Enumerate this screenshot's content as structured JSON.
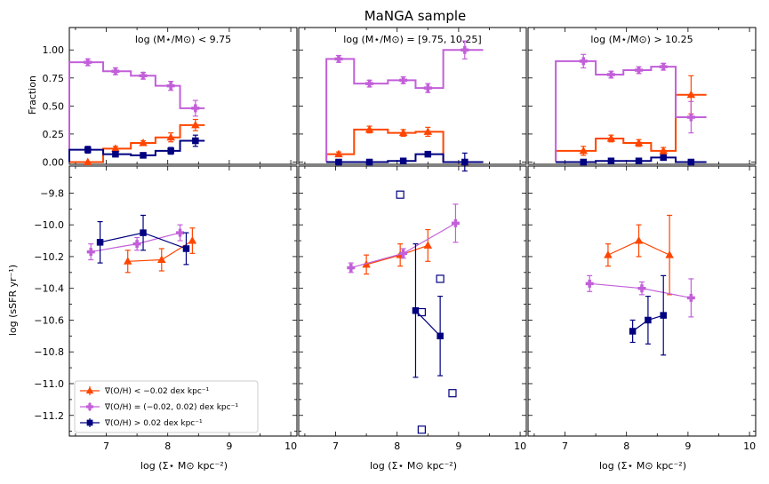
{
  "chart_data": {
    "type": "line",
    "title": "MaNGA sample",
    "x_axis": {
      "label": "log (Σ⋆ M⊙ kpc⁻²)",
      "range": [
        6.4,
        10.1
      ],
      "ticks": [
        7,
        8,
        9,
        10
      ]
    },
    "fraction_axis": {
      "label": "Fraction",
      "range": [
        -0.02,
        1.2
      ],
      "ticks": [
        0.0,
        0.25,
        0.5,
        0.75,
        1.0
      ],
      "tick_labels": [
        "0.00",
        "0.25",
        "0.50",
        "0.75",
        "1.00"
      ]
    },
    "ssfr_axis": {
      "label": "log (sSFR yr⁻¹)",
      "range": [
        -11.33,
        -9.63
      ],
      "ticks": [
        -9.8,
        -10.0,
        -10.2,
        -10.4,
        -10.6,
        -10.8,
        -11.0,
        -11.2
      ],
      "tick_labels": [
        "−9.8",
        "−10.0",
        "−10.2",
        "−10.4",
        "−10.6",
        "−10.8",
        "−11.0",
        "−11.2"
      ]
    },
    "series_styles": [
      {
        "key": "neg",
        "name": "∇(O/H) < −0.02 dex kpc⁻¹",
        "color": "#ff4500",
        "marker": "triangle"
      },
      {
        "key": "flat",
        "name": "∇(O/H) = (−0.02, 0.02) dex kpc⁻¹",
        "color": "#c25fd9",
        "marker": "plus"
      },
      {
        "key": "pos",
        "name": "∇(O/H) > 0.02 dex kpc⁻¹",
        "color": "#000080",
        "marker": "square"
      }
    ],
    "panels": [
      {
        "label": "log (M⋆/M⊙) < 9.75",
        "fraction": {
          "neg": {
            "edges": [
              6.4,
              6.95,
              7.4,
              7.8,
              8.2,
              8.6
            ],
            "values": [
              0.0,
              0.12,
              0.17,
              0.22,
              0.33
            ],
            "points": [
              [
                6.7,
                0.0
              ],
              [
                7.15,
                0.12
              ],
              [
                7.6,
                0.17
              ],
              [
                8.05,
                0.22
              ],
              [
                8.45,
                0.33
              ]
            ],
            "errors": [
              0.0,
              0.02,
              0.02,
              0.04,
              0.05
            ]
          },
          "flat": {
            "edges": [
              6.4,
              6.95,
              7.4,
              7.8,
              8.2,
              8.6
            ],
            "values": [
              0.89,
              0.81,
              0.77,
              0.68,
              0.48
            ],
            "points": [
              [
                6.7,
                0.89
              ],
              [
                7.15,
                0.81
              ],
              [
                7.6,
                0.77
              ],
              [
                8.05,
                0.68
              ],
              [
                8.45,
                0.48
              ]
            ],
            "errors": [
              0.03,
              0.03,
              0.03,
              0.04,
              0.07
            ]
          },
          "pos": {
            "edges": [
              6.4,
              6.95,
              7.4,
              7.8,
              8.2,
              8.6
            ],
            "values": [
              0.11,
              0.07,
              0.06,
              0.1,
              0.19
            ],
            "points": [
              [
                6.7,
                0.11
              ],
              [
                7.15,
                0.07
              ],
              [
                7.6,
                0.06
              ],
              [
                8.05,
                0.1
              ],
              [
                8.45,
                0.19
              ]
            ],
            "errors": [
              0.03,
              0.02,
              0.02,
              0.03,
              0.05
            ]
          }
        },
        "ssfr": {
          "neg": {
            "points": [
              [
                7.35,
                -10.23
              ],
              [
                7.9,
                -10.22
              ],
              [
                8.4,
                -10.1
              ]
            ],
            "errors": [
              0.07,
              0.07,
              0.08
            ],
            "open": []
          },
          "flat": {
            "points": [
              [
                6.75,
                -10.17
              ],
              [
                7.5,
                -10.12
              ],
              [
                8.2,
                -10.05
              ]
            ],
            "errors": [
              0.05,
              0.04,
              0.05
            ],
            "open": []
          },
          "pos": {
            "points": [
              [
                6.9,
                -10.11
              ],
              [
                7.6,
                -10.05
              ],
              [
                8.3,
                -10.15
              ]
            ],
            "errors": [
              0.13,
              0.11,
              0.1
            ],
            "open": []
          }
        }
      },
      {
        "label": "log (M⋆/M⊙) = [9.75, 10.25]",
        "fraction": {
          "neg": {
            "edges": [
              6.85,
              7.3,
              7.85,
              8.3,
              8.75,
              9.4
            ],
            "values": [
              0.07,
              0.29,
              0.26,
              0.27,
              0.0
            ],
            "points": [
              [
                7.05,
                0.07
              ],
              [
                7.55,
                0.29
              ],
              [
                8.1,
                0.26
              ],
              [
                8.5,
                0.27
              ],
              [
                9.1,
                0.0
              ]
            ],
            "errors": [
              0.02,
              0.03,
              0.03,
              0.04,
              0.0
            ]
          },
          "flat": {
            "edges": [
              6.85,
              7.3,
              7.85,
              8.3,
              8.75,
              9.4
            ],
            "values": [
              0.92,
              0.7,
              0.73,
              0.66,
              1.0
            ],
            "points": [
              [
                7.05,
                0.92
              ],
              [
                7.55,
                0.7
              ],
              [
                8.1,
                0.73
              ],
              [
                8.5,
                0.66
              ],
              [
                9.1,
                1.0
              ]
            ],
            "errors": [
              0.03,
              0.03,
              0.03,
              0.04,
              0.08
            ]
          },
          "pos": {
            "edges": [
              6.85,
              7.3,
              7.85,
              8.3,
              8.75,
              9.4
            ],
            "values": [
              0.0,
              0.0,
              0.01,
              0.07,
              0.0
            ],
            "points": [
              [
                7.05,
                0.0
              ],
              [
                7.55,
                0.0
              ],
              [
                8.1,
                0.01
              ],
              [
                8.5,
                0.07
              ],
              [
                9.1,
                0.0
              ]
            ],
            "errors": [
              0.0,
              0.0,
              0.01,
              0.02,
              0.08
            ]
          }
        },
        "ssfr": {
          "neg": {
            "points": [
              [
                7.5,
                -10.25
              ],
              [
                8.05,
                -10.19
              ],
              [
                8.5,
                -10.13
              ]
            ],
            "errors": [
              0.06,
              0.07,
              0.1
            ],
            "open": []
          },
          "flat": {
            "points": [
              [
                7.25,
                -10.27
              ],
              [
                8.1,
                -10.18
              ],
              [
                8.95,
                -9.99
              ]
            ],
            "errors": [
              0.03,
              0.03,
              0.12
            ],
            "open": []
          },
          "pos": {
            "points": [
              [
                8.3,
                -10.54
              ],
              [
                8.7,
                -10.7
              ]
            ],
            "errors": [
              0.42,
              0.25
            ],
            "open": [
              [
                8.05,
                -9.81
              ],
              [
                8.7,
                -10.34
              ],
              [
                8.4,
                -10.55
              ],
              [
                8.9,
                -11.06
              ],
              [
                8.4,
                -11.29
              ]
            ]
          }
        }
      },
      {
        "label": "log (M⋆/M⊙) > 10.25",
        "fraction": {
          "neg": {
            "edges": [
              6.85,
              7.5,
              7.95,
              8.4,
              8.8,
              9.3
            ],
            "values": [
              0.1,
              0.21,
              0.17,
              0.1,
              0.6
            ],
            "points": [
              [
                7.3,
                0.1
              ],
              [
                7.75,
                0.21
              ],
              [
                8.2,
                0.17
              ],
              [
                8.6,
                0.1
              ],
              [
                9.05,
                0.6
              ]
            ],
            "errors": [
              0.04,
              0.03,
              0.03,
              0.03,
              0.17
            ]
          },
          "flat": {
            "edges": [
              6.85,
              7.5,
              7.95,
              8.4,
              8.8,
              9.3
            ],
            "values": [
              0.9,
              0.78,
              0.82,
              0.85,
              0.4
            ],
            "points": [
              [
                7.3,
                0.9
              ],
              [
                7.75,
                0.78
              ],
              [
                8.2,
                0.82
              ],
              [
                8.6,
                0.85
              ],
              [
                9.05,
                0.4
              ]
            ],
            "errors": [
              0.06,
              0.03,
              0.03,
              0.03,
              0.14
            ]
          },
          "pos": {
            "edges": [
              6.85,
              7.5,
              7.95,
              8.4,
              8.8,
              9.3
            ],
            "values": [
              0.0,
              0.01,
              0.01,
              0.04,
              0.0
            ],
            "points": [
              [
                7.3,
                0.0
              ],
              [
                7.75,
                0.01
              ],
              [
                8.2,
                0.01
              ],
              [
                8.6,
                0.04
              ],
              [
                9.05,
                0.0
              ]
            ],
            "errors": [
              0.0,
              0.01,
              0.01,
              0.02,
              0.0
            ]
          }
        },
        "ssfr": {
          "neg": {
            "points": [
              [
                7.7,
                -10.19
              ],
              [
                8.2,
                -10.1
              ],
              [
                8.7,
                -10.19
              ]
            ],
            "errors": [
              0.07,
              0.1,
              0.25
            ],
            "open": []
          },
          "flat": {
            "points": [
              [
                7.4,
                -10.37
              ],
              [
                8.25,
                -10.4
              ],
              [
                9.05,
                -10.46
              ]
            ],
            "errors": [
              0.05,
              0.04,
              0.12
            ],
            "open": []
          },
          "pos": {
            "points": [
              [
                8.1,
                -10.67
              ],
              [
                8.35,
                -10.6
              ],
              [
                8.6,
                -10.57
              ]
            ],
            "errors": [
              0.07,
              0.15,
              0.25
            ],
            "open": []
          }
        }
      }
    ]
  }
}
